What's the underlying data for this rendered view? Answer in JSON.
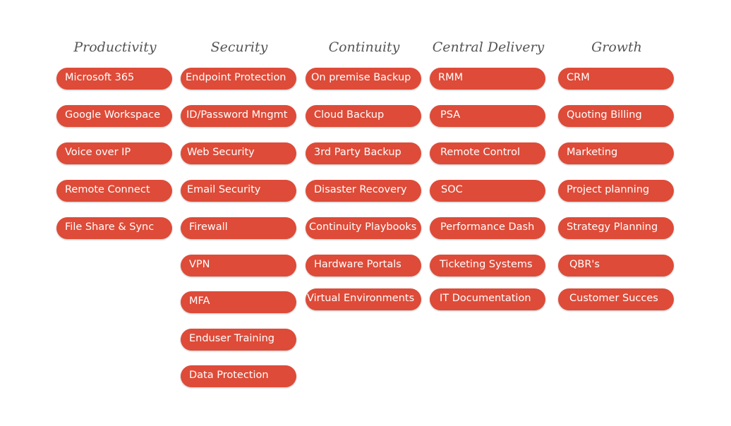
{
  "columns": [
    {
      "title": "Productivity",
      "items": [
        "Microsoft 365",
        "Google Workspace",
        "Voice over IP",
        "Remote Connect",
        "File Share & Sync"
      ]
    },
    {
      "title": "Security",
      "items": [
        "Endpoint Protection",
        "ID/Password Mngmt",
        "Web Security",
        "Email Security",
        "Firewall",
        "VPN",
        "MFA",
        "Enduser Training",
        "Data Protection"
      ]
    },
    {
      "title": "Continuity",
      "items": [
        "On premise Backup",
        "Cloud Backup",
        "3rd Party Backup",
        "Disaster Recovery",
        "Continuity Playbooks",
        "Hardware Portals",
        "Virtual Environments"
      ]
    },
    {
      "title": "Central Delivery",
      "items": [
        "RMM",
        "PSA",
        "Remote Control",
        "SOC",
        "Performance Dash",
        "Ticketing Systems",
        "IT Documentation"
      ]
    },
    {
      "title": "Growth",
      "items": [
        "CRM",
        "Quoting Billing",
        "Marketing",
        "Project planning",
        "Strategy Planning",
        "QBR's",
        "Customer Succes"
      ]
    }
  ],
  "colors": {
    "pill": "#de4b38",
    "pill_text": "#ffffff",
    "title_text": "#555555"
  }
}
